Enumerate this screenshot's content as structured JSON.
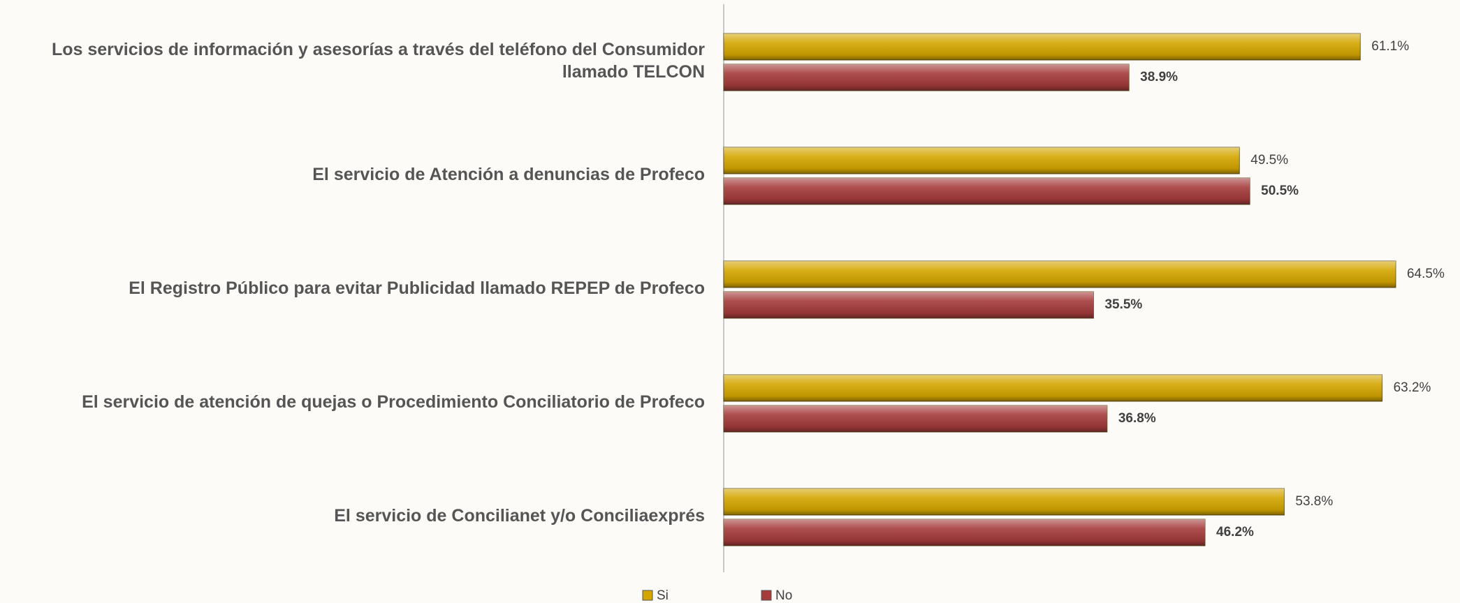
{
  "chart_data": {
    "type": "hbar",
    "categories": [
      "Los servicios de información y asesorías a través del teléfono del Consumidor llamado TELCON",
      "El servicio de Atención a denuncias de Profeco",
      "El Registro Público para evitar Publicidad llamado REPEP de Profeco",
      "El servicio de atención de quejas o Procedimiento Conciliatorio de Profeco",
      "El servicio de Concilianet y/o Conciliaexprés"
    ],
    "series": [
      {
        "name": "Si",
        "color": "#d4a600",
        "values": [
          61.1,
          49.5,
          64.5,
          63.2,
          53.8
        ],
        "value_labels": [
          "61.1%",
          "49.5%",
          "64.5%",
          "63.2%",
          "53.8%"
        ]
      },
      {
        "name": "No",
        "color": "#a53b3b",
        "values": [
          38.9,
          50.5,
          35.5,
          36.8,
          46.2
        ],
        "value_labels": [
          "38.9%",
          "50.5%",
          "35.5%",
          "36.8%",
          "46.2%"
        ]
      }
    ],
    "xlim": [
      0,
      70
    ],
    "legend": "bottom"
  }
}
